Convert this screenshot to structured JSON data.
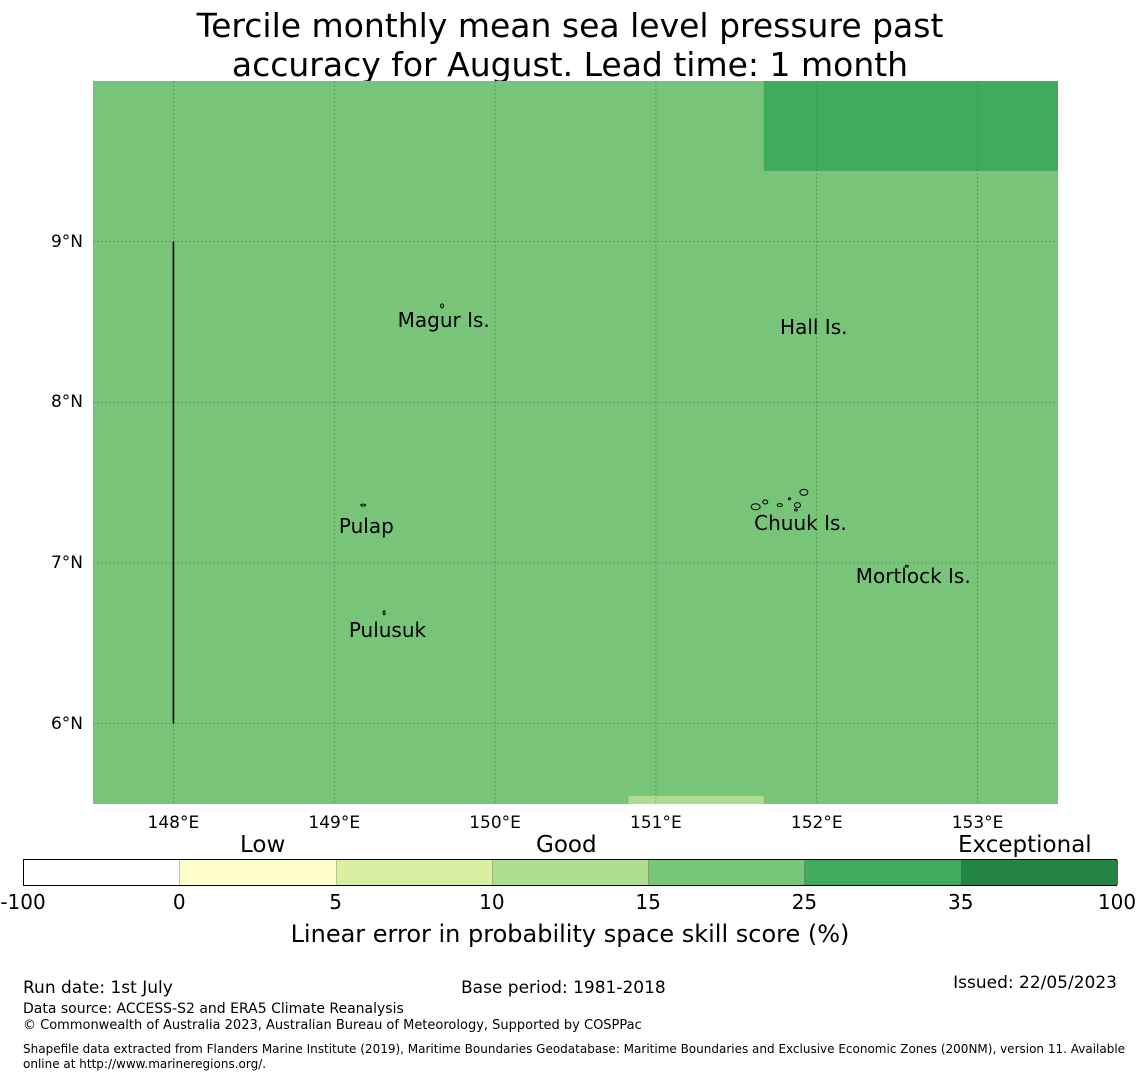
{
  "title_lines": [
    "Tercile monthly mean sea level pressure past",
    "accuracy for August. Lead time: 1 month"
  ],
  "map": {
    "lat_range": [
      5.5,
      10.0
    ],
    "lon_range": [
      147.5,
      153.5
    ],
    "base_color": "#78c57a",
    "cells": [
      {
        "lon": [
          151.67,
          153.5
        ],
        "lat": [
          9.44,
          10.0
        ],
        "color": "#41ab5d",
        "skill_class": "25-35"
      },
      {
        "lon": [
          150.83,
          151.67
        ],
        "lat": [
          5.5,
          5.55
        ],
        "color": "#addd8e",
        "skill_class": "10-15"
      }
    ],
    "boundary_line": {
      "lon": 148.0,
      "lat": [
        6.0,
        9.0
      ],
      "color": "#000000"
    },
    "gridline_color": "#2d7a33",
    "y_ticks": [
      {
        "lat": 9,
        "label": "9°N"
      },
      {
        "lat": 8,
        "label": "8°N"
      },
      {
        "lat": 7,
        "label": "7°N"
      },
      {
        "lat": 6,
        "label": "6°N"
      }
    ],
    "x_ticks": [
      {
        "lon": 148,
        "label": "148°E"
      },
      {
        "lon": 149,
        "label": "149°E"
      },
      {
        "lon": 150,
        "label": "150°E"
      },
      {
        "lon": 151,
        "label": "151°E"
      },
      {
        "lon": 152,
        "label": "152°E"
      },
      {
        "lon": 153,
        "label": "153°E"
      }
    ],
    "places": [
      {
        "name": "Magur Is.",
        "lon": 149.68,
        "lat": 8.51
      },
      {
        "name": "Hall Is.",
        "lon": 151.98,
        "lat": 8.47
      },
      {
        "name": "Pulap",
        "lon": 149.2,
        "lat": 7.23
      },
      {
        "name": "Chuuk Is.",
        "lon": 151.9,
        "lat": 7.25
      },
      {
        "name": "Mortlock Is.",
        "lon": 152.6,
        "lat": 6.92
      },
      {
        "name": "Pulusuk",
        "lon": 149.33,
        "lat": 6.58
      }
    ]
  },
  "legend": {
    "categories": [
      "Low",
      "Good",
      "Exceptional"
    ],
    "segments": [
      {
        "color": "#ffffff"
      },
      {
        "color": "#ffffcc"
      },
      {
        "color": "#d9f0a3"
      },
      {
        "color": "#addd8e"
      },
      {
        "color": "#78c679"
      },
      {
        "color": "#41ab5d"
      },
      {
        "color": "#238443"
      }
    ],
    "tick_labels": [
      "-100",
      "0",
      "5",
      "10",
      "15",
      "25",
      "35",
      "100"
    ],
    "axis_label": "Linear error in probability space skill score (%)"
  },
  "footer": {
    "run_date": "Run date: 1st July",
    "base_period": "Base period: 1981-2018",
    "issued": "Issued: 22/05/2023",
    "data_source": "Data source: ACCESS-S2 and ERA5 Climate Reanalysis",
    "copyright": "© Commonwealth of Australia 2023, Australian Bureau of Meteorology, Supported by COSPPac",
    "shapefile_line1": "Shapefile data extracted from Flanders Marine Institute (2019), Maritime Boundaries Geodatabase: Maritime Boundaries and Exclusive Economic Zones (200NM), version 11. Available",
    "shapefile_line2": "online at http://www.marineregions.org/."
  }
}
